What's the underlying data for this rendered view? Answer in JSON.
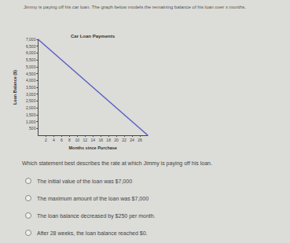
{
  "header": "Jimmy is paying off his car loan. The graph below models the remaining balance of his loan over x months.",
  "chart_data": {
    "type": "line",
    "title": "Car Loan Payments",
    "x_label": "Months since Purchase",
    "y_label": "Loan Balance ($)",
    "x": [
      0,
      28
    ],
    "values": [
      7000,
      0
    ],
    "color": "#5b5fc7",
    "xlim": [
      0,
      28
    ],
    "xticks": [
      2,
      4,
      6,
      8,
      10,
      12,
      14,
      16,
      18,
      20,
      22,
      24,
      26
    ],
    "ylim": [
      0,
      7000
    ],
    "yticks": [
      500,
      1000,
      1500,
      2000,
      2500,
      3000,
      3500,
      4000,
      4500,
      5000,
      5500,
      6000,
      6500,
      7000
    ],
    "grid": false
  },
  "question": "Which statement best describes the rate at which Jimmy is paying off his loan.",
  "options": [
    "The initial value of the loan was $7,000",
    "The maximum amount of the loan was $7,000",
    "The loan balance decreased by $250 per month.",
    "After 28 weeks, the loan balance reached $0."
  ]
}
